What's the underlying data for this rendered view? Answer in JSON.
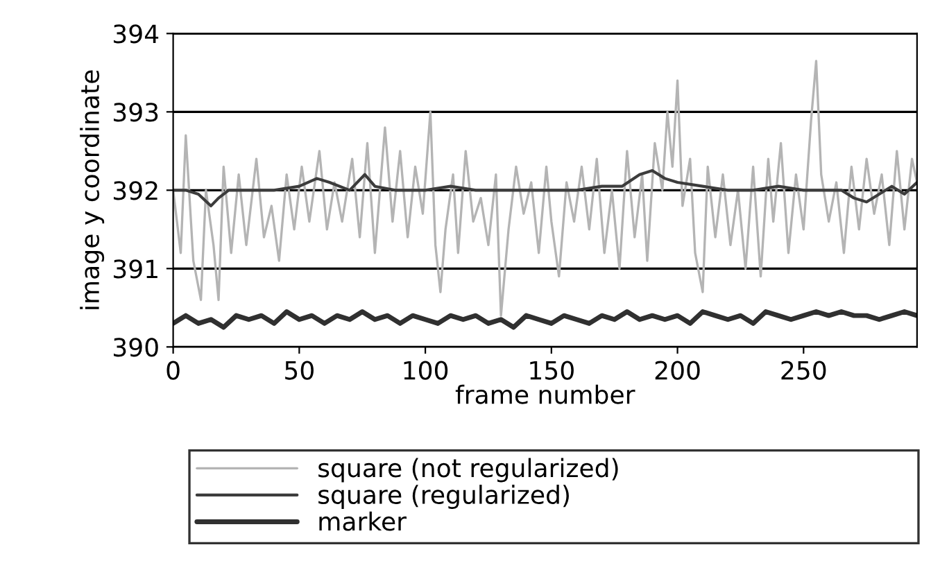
{
  "chart_data": {
    "type": "line",
    "xlabel": "frame number",
    "ylabel": "image y coordinate",
    "xlim": [
      0,
      295
    ],
    "xticks": [
      0,
      50,
      100,
      150,
      200,
      250
    ],
    "ylim": [
      390,
      394
    ],
    "yticks": [
      390,
      391,
      392,
      393,
      394
    ],
    "grid": "y",
    "legend": "bottom",
    "marker": "none",
    "line_style": "solid",
    "series": [
      {
        "name": "square (not regularized)",
        "color": "#b4b4b4",
        "x": [
          0,
          3,
          5,
          8,
          11,
          13,
          16,
          18,
          20,
          23,
          26,
          29,
          33,
          36,
          39,
          42,
          45,
          48,
          51,
          54,
          58,
          61,
          64,
          67,
          71,
          74,
          77,
          80,
          84,
          87,
          90,
          93,
          96,
          99,
          102,
          104,
          106,
          108,
          111,
          113,
          116,
          119,
          122,
          125,
          128,
          130,
          133,
          136,
          139,
          142,
          145,
          148,
          150,
          153,
          156,
          159,
          162,
          165,
          168,
          171,
          174,
          177,
          180,
          183,
          186,
          188,
          191,
          194,
          196,
          198,
          200,
          202,
          205,
          207,
          210,
          212,
          215,
          218,
          221,
          224,
          227,
          230,
          233,
          236,
          238,
          241,
          244,
          247,
          250,
          253,
          255,
          257,
          260,
          263,
          266,
          269,
          272,
          275,
          278,
          281,
          284,
          287,
          290,
          293,
          295
        ],
        "values": [
          392.0,
          391.2,
          392.7,
          391.1,
          390.6,
          392.0,
          391.3,
          390.6,
          392.3,
          391.2,
          392.2,
          391.3,
          392.4,
          391.4,
          391.8,
          391.1,
          392.2,
          391.5,
          392.3,
          391.6,
          392.5,
          391.5,
          392.1,
          391.6,
          392.4,
          391.4,
          392.6,
          391.2,
          392.8,
          391.6,
          392.5,
          391.4,
          392.3,
          391.7,
          393.0,
          391.3,
          390.7,
          391.5,
          392.2,
          391.2,
          392.5,
          391.6,
          391.9,
          391.3,
          392.2,
          390.4,
          391.5,
          392.3,
          391.7,
          392.1,
          391.2,
          392.3,
          391.6,
          390.9,
          392.1,
          391.6,
          392.3,
          391.5,
          392.4,
          391.2,
          392.0,
          391.0,
          392.5,
          391.4,
          392.2,
          391.1,
          392.6,
          392.0,
          393.0,
          392.3,
          393.4,
          391.8,
          392.4,
          391.2,
          390.7,
          392.3,
          391.4,
          392.2,
          391.3,
          392.0,
          391.0,
          392.3,
          390.9,
          392.4,
          391.6,
          392.6,
          391.2,
          392.2,
          391.5,
          392.9,
          393.65,
          392.2,
          391.6,
          392.1,
          391.2,
          392.3,
          391.5,
          392.4,
          391.7,
          392.2,
          391.3,
          392.5,
          391.5,
          392.4,
          392.1
        ]
      },
      {
        "name": "square (regularized)",
        "color": "#3c3c3c",
        "x": [
          0,
          5,
          10,
          15,
          18,
          22,
          30,
          40,
          50,
          57,
          62,
          70,
          76,
          80,
          88,
          100,
          110,
          120,
          130,
          140,
          150,
          160,
          170,
          178,
          185,
          190,
          195,
          200,
          210,
          220,
          230,
          240,
          250,
          258,
          265,
          270,
          275,
          280,
          285,
          290,
          295
        ],
        "values": [
          392.0,
          392.0,
          391.95,
          391.8,
          391.9,
          392.0,
          392.0,
          392.0,
          392.05,
          392.15,
          392.1,
          392.0,
          392.2,
          392.05,
          392.0,
          392.0,
          392.05,
          392.0,
          392.0,
          392.0,
          392.0,
          392.0,
          392.05,
          392.05,
          392.2,
          392.25,
          392.15,
          392.1,
          392.05,
          392.0,
          392.0,
          392.05,
          392.0,
          392.0,
          392.0,
          391.9,
          391.85,
          391.95,
          392.05,
          391.95,
          392.1
        ]
      },
      {
        "name": "marker",
        "color": "#303030",
        "x": [
          0,
          5,
          10,
          15,
          20,
          25,
          30,
          35,
          40,
          45,
          50,
          55,
          60,
          65,
          70,
          75,
          80,
          85,
          90,
          95,
          100,
          105,
          110,
          115,
          120,
          125,
          130,
          135,
          140,
          145,
          150,
          155,
          160,
          165,
          170,
          175,
          180,
          185,
          190,
          195,
          200,
          205,
          210,
          215,
          220,
          225,
          230,
          235,
          240,
          245,
          250,
          255,
          260,
          265,
          270,
          275,
          280,
          285,
          290,
          295
        ],
        "values": [
          390.3,
          390.4,
          390.3,
          390.35,
          390.25,
          390.4,
          390.35,
          390.4,
          390.3,
          390.45,
          390.35,
          390.4,
          390.3,
          390.4,
          390.35,
          390.45,
          390.35,
          390.4,
          390.3,
          390.4,
          390.35,
          390.3,
          390.4,
          390.35,
          390.4,
          390.3,
          390.35,
          390.25,
          390.4,
          390.35,
          390.3,
          390.4,
          390.35,
          390.3,
          390.4,
          390.35,
          390.45,
          390.35,
          390.4,
          390.35,
          390.4,
          390.3,
          390.45,
          390.4,
          390.35,
          390.4,
          390.3,
          390.45,
          390.4,
          390.35,
          390.4,
          390.45,
          390.4,
          390.45,
          390.4,
          390.4,
          390.35,
          390.4,
          390.45,
          390.4
        ]
      }
    ]
  }
}
